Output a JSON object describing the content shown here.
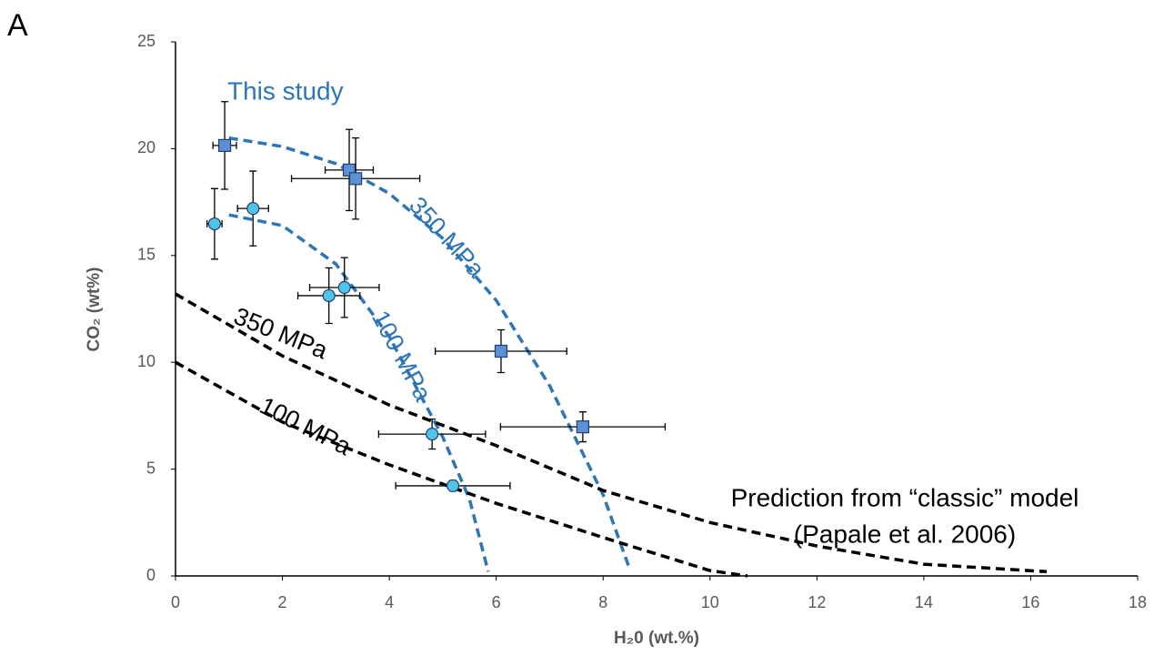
{
  "chart_data": {
    "type": "scatter",
    "panel_label": "A",
    "xlabel": "H₂0 (wt.%)",
    "ylabel": "CO₂ (wt%)",
    "xlim": [
      0,
      18
    ],
    "xticks": [
      0,
      2,
      4,
      6,
      8,
      10,
      12,
      14,
      16,
      18
    ],
    "ylim": [
      0,
      25
    ],
    "yticks": [
      0,
      5,
      10,
      15,
      20,
      25
    ],
    "series": [
      {
        "marker": "square",
        "color": "#5b8fd6",
        "x": [
          0.92,
          3.25,
          3.37,
          6.09,
          7.62
        ],
        "values": [
          20.15,
          19.0,
          18.6,
          10.52,
          6.98
        ],
        "xerr": [
          0.22,
          0.45,
          1.2,
          1.23,
          1.54
        ],
        "yerr": [
          2.05,
          1.9,
          1.9,
          1.0,
          0.7
        ]
      },
      {
        "marker": "circle",
        "color": "#4fc3e8",
        "x": [
          0.73,
          1.45,
          2.87,
          3.16,
          4.8,
          5.19
        ],
        "values": [
          16.48,
          17.2,
          13.12,
          13.5,
          6.64,
          4.22
        ],
        "xerr": [
          0.14,
          0.29,
          0.58,
          0.65,
          1.0,
          1.07
        ],
        "yerr": [
          1.65,
          1.75,
          1.3,
          1.4,
          0.7,
          0.25
        ]
      }
    ],
    "curves": [
      {
        "label": "350 MPa",
        "color": "#2e75b6",
        "x": [
          1,
          2,
          3,
          4,
          5,
          6,
          7,
          8,
          8.5
        ],
        "values": [
          20.5,
          20.1,
          19.3,
          17.9,
          15.8,
          12.9,
          8.9,
          3.8,
          0.3
        ]
      },
      {
        "label": "100 MPa",
        "color": "#2e75b6",
        "x": [
          1,
          2,
          3,
          4,
          5,
          5.5,
          5.85
        ],
        "values": [
          16.9,
          16.4,
          14.6,
          11.2,
          6.5,
          3.6,
          0.2
        ]
      },
      {
        "label": "350 MPa",
        "color": "#000000",
        "x": [
          0,
          2,
          4,
          6,
          8,
          10,
          12,
          14,
          16.3
        ],
        "values": [
          13.2,
          10.3,
          8.0,
          6.1,
          4.0,
          2.5,
          1.4,
          0.55,
          0.2
        ]
      },
      {
        "label": "100 MPa",
        "color": "#000000",
        "x": [
          0,
          2,
          4,
          6,
          8,
          10,
          10.7
        ],
        "values": [
          10,
          7.2,
          5.2,
          3.4,
          1.8,
          0.25,
          0
        ]
      }
    ],
    "annotations": [
      "This study",
      "Prediction from “classic” model",
      "(Papale et al. 2006)"
    ]
  }
}
